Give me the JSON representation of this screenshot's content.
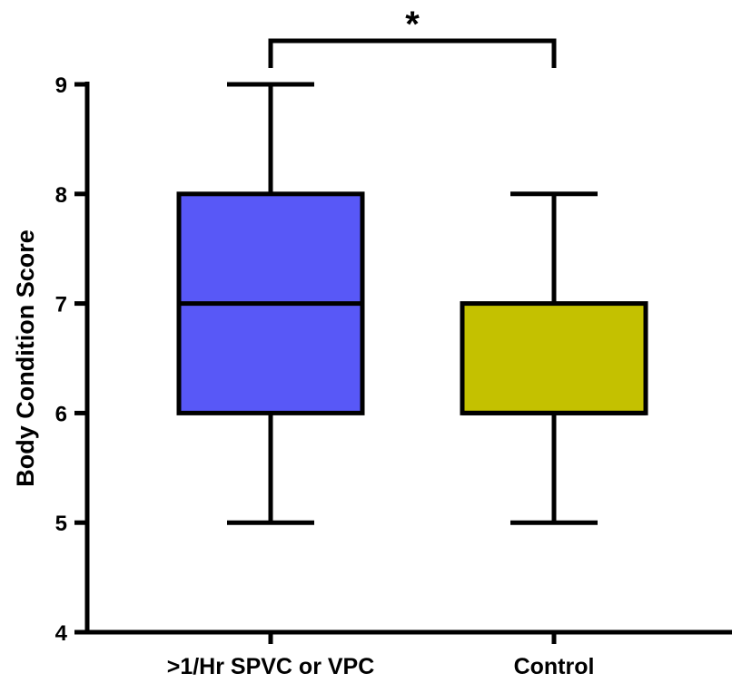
{
  "chart_data": {
    "type": "boxplot",
    "title": "",
    "xlabel": "",
    "ylabel": "Body Condition  Score",
    "ylim": [
      4,
      9
    ],
    "yticks": [
      4,
      5,
      6,
      7,
      8,
      9
    ],
    "grid": false,
    "legend": "none",
    "categories": [
      ">1/Hr SPVC or VPC",
      "Control"
    ],
    "boxes": [
      {
        "category": ">1/Hr SPVC or VPC",
        "min": 5,
        "q1": 6,
        "median": 7,
        "q3": 8,
        "max": 9,
        "color": "#5858f7"
      },
      {
        "category": "Control",
        "min": 5,
        "q1": 6,
        "median": 6,
        "q3": 7,
        "max": 8,
        "color": "#c4c100"
      }
    ],
    "annotations": [
      {
        "type": "significance-bracket",
        "between": [
          ">1/Hr SPVC or VPC",
          "Control"
        ],
        "label": "*"
      }
    ]
  }
}
